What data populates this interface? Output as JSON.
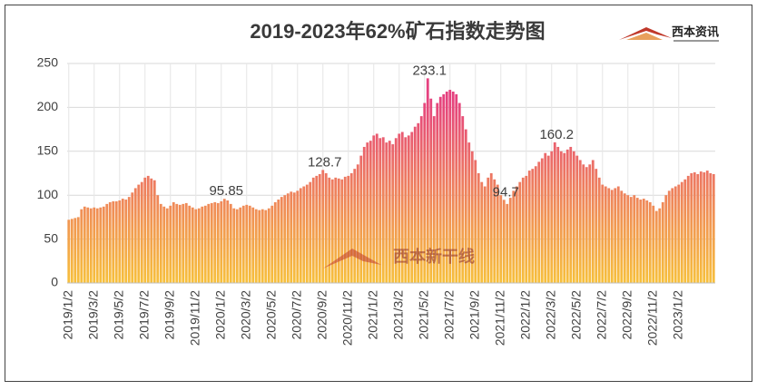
{
  "chart_data": {
    "type": "bar",
    "title": "2019-2023年62%矿石指数走势图",
    "logo": "西本资讯",
    "watermark": "西本新干线",
    "gradient": [
      "#e5417f",
      "#f7c03c"
    ],
    "grid": true,
    "ylim": [
      0,
      250
    ],
    "yticks": [
      0,
      50,
      100,
      150,
      200,
      250
    ],
    "categories": [
      "2019/1/2",
      null,
      null,
      null,
      null,
      null,
      null,
      null,
      "2019/3/2",
      null,
      null,
      null,
      null,
      null,
      null,
      null,
      "2019/5/2",
      null,
      null,
      null,
      null,
      null,
      null,
      null,
      "2019/7/2",
      null,
      null,
      null,
      null,
      null,
      null,
      null,
      "2019/9/2",
      null,
      null,
      null,
      null,
      null,
      null,
      null,
      "2019/11/2",
      null,
      null,
      null,
      null,
      null,
      null,
      null,
      "2020/1/2",
      null,
      null,
      null,
      null,
      null,
      null,
      null,
      "2020/3/2",
      null,
      null,
      null,
      null,
      null,
      null,
      null,
      "2020/5/2",
      null,
      null,
      null,
      null,
      null,
      null,
      null,
      "2020/7/2",
      null,
      null,
      null,
      null,
      null,
      null,
      null,
      "2020/9/2",
      null,
      null,
      null,
      null,
      null,
      null,
      null,
      "2020/11/2",
      null,
      null,
      null,
      null,
      null,
      null,
      null,
      "2021/1/2",
      null,
      null,
      null,
      null,
      null,
      null,
      null,
      "2021/3/2",
      null,
      null,
      null,
      null,
      null,
      null,
      null,
      "2021/5/2",
      null,
      null,
      null,
      null,
      null,
      null,
      null,
      "2021/7/2",
      null,
      null,
      null,
      null,
      null,
      null,
      null,
      "2021/9/2",
      null,
      null,
      null,
      null,
      null,
      null,
      null,
      "2021/11/2",
      null,
      null,
      null,
      null,
      null,
      null,
      null,
      "2022/1/2",
      null,
      null,
      null,
      null,
      null,
      null,
      null,
      "2022/3/2",
      null,
      null,
      null,
      null,
      null,
      null,
      null,
      "2022/5/2",
      null,
      null,
      null,
      null,
      null,
      null,
      null,
      "2022/7/2",
      null,
      null,
      null,
      null,
      null,
      null,
      null,
      "2022/9/2",
      null,
      null,
      null,
      null,
      null,
      null,
      null,
      "2022/11/2",
      null,
      null,
      null,
      null,
      null,
      null,
      null,
      "2023/1/2",
      null,
      null,
      null,
      null,
      null,
      null,
      null,
      null,
      null,
      null,
      null
    ],
    "values": [
      72,
      73,
      74,
      75,
      84,
      87,
      86,
      85,
      86,
      85,
      86,
      87,
      90,
      92,
      93,
      93,
      94,
      96,
      95,
      98,
      103,
      108,
      112,
      115,
      120,
      122,
      119,
      117,
      100,
      90,
      87,
      85,
      88,
      92,
      90,
      89,
      90,
      91,
      88,
      86,
      84,
      85,
      87,
      88,
      90,
      91,
      92,
      91,
      93,
      95.85,
      94,
      90,
      85,
      84,
      86,
      88,
      89,
      88,
      86,
      84,
      83,
      84,
      83,
      85,
      88,
      92,
      95,
      98,
      100,
      102,
      104,
      103,
      105,
      108,
      110,
      112,
      115,
      120,
      122,
      124,
      128.7,
      125,
      120,
      118,
      120,
      119,
      118,
      121,
      122,
      125,
      130,
      135,
      145,
      155,
      160,
      162,
      168,
      170,
      165,
      166,
      160,
      162,
      158,
      165,
      170,
      172,
      166,
      168,
      172,
      178,
      182,
      190,
      205,
      233.1,
      210,
      190,
      205,
      212,
      215,
      218,
      220,
      218,
      215,
      205,
      190,
      175,
      160,
      150,
      140,
      125,
      115,
      110,
      120,
      125,
      118,
      112,
      100,
      94.7,
      90,
      97,
      105,
      110,
      115,
      120,
      122,
      128,
      130,
      133,
      138,
      142,
      148,
      145,
      150,
      160.2,
      155,
      150,
      148,
      152,
      155,
      150,
      145,
      140,
      135,
      132,
      135,
      140,
      130,
      120,
      112,
      110,
      108,
      106,
      108,
      110,
      105,
      102,
      100,
      98,
      100,
      97,
      95,
      96,
      94,
      92,
      88,
      82,
      85,
      92,
      100,
      105,
      108,
      110,
      112,
      115,
      118,
      122,
      125,
      126,
      124,
      127,
      126,
      128,
      125,
      124
    ],
    "value_labels": [
      null,
      null,
      null,
      null,
      null,
      null,
      null,
      null,
      null,
      null,
      null,
      null,
      null,
      null,
      null,
      null,
      null,
      null,
      null,
      null,
      null,
      null,
      null,
      null,
      null,
      null,
      null,
      null,
      null,
      null,
      null,
      null,
      null,
      null,
      null,
      null,
      null,
      null,
      null,
      null,
      null,
      null,
      null,
      null,
      null,
      null,
      null,
      null,
      null,
      "95.85",
      null,
      null,
      null,
      null,
      null,
      null,
      null,
      null,
      null,
      null,
      null,
      null,
      null,
      null,
      null,
      null,
      null,
      null,
      null,
      null,
      null,
      null,
      null,
      null,
      null,
      null,
      null,
      null,
      null,
      null,
      "128.7",
      null,
      null,
      null,
      null,
      null,
      null,
      null,
      null,
      null,
      null,
      null,
      null,
      null,
      null,
      null,
      null,
      null,
      null,
      null,
      null,
      null,
      null,
      null,
      null,
      null,
      null,
      null,
      null,
      null,
      null,
      null,
      null,
      "233.1",
      null,
      null,
      null,
      null,
      null,
      null,
      null,
      null,
      null,
      null,
      null,
      null,
      null,
      null,
      null,
      null,
      null,
      null,
      null,
      null,
      null,
      null,
      null,
      "94.7",
      null,
      null,
      null,
      null,
      null,
      null,
      null,
      null,
      null,
      null,
      null,
      null,
      null,
      null,
      null,
      "160.2",
      null,
      null,
      null,
      null,
      null,
      null,
      null,
      null,
      null,
      null,
      null,
      null,
      null,
      null,
      null,
      null,
      null,
      null,
      null,
      null,
      null,
      null,
      null,
      null,
      null,
      null,
      null,
      null,
      null,
      null,
      null,
      null,
      null,
      null,
      null,
      null,
      null,
      null,
      null,
      null,
      null,
      null,
      null,
      null,
      null,
      null,
      null,
      null,
      null,
      null
    ]
  }
}
